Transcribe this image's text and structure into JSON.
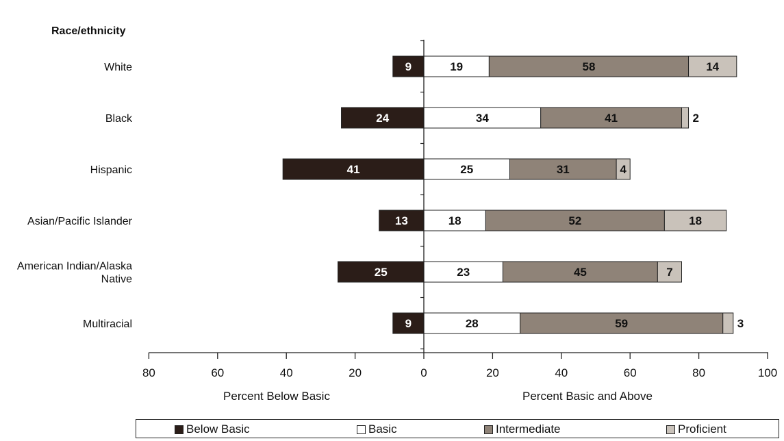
{
  "chart_data": {
    "type": "bar",
    "group_title": "Race/ethnicity",
    "categories": [
      "White",
      "Black",
      "Hispanic",
      "Asian/Pacific Islander",
      "American Indian/Alaska Native",
      "Multiracial"
    ],
    "category_lines": [
      [
        "White"
      ],
      [
        "Black"
      ],
      [
        "Hispanic"
      ],
      [
        "Asian/Pacific Islander"
      ],
      [
        "American Indian/Alaska",
        "Native"
      ],
      [
        "Multiracial"
      ]
    ],
    "series": [
      {
        "name": "Below Basic",
        "color": "#2b1d18",
        "text_color": "#ffffff",
        "values": [
          9,
          24,
          41,
          13,
          25,
          9
        ]
      },
      {
        "name": "Basic",
        "color": "#ffffff",
        "text_color": "#111111",
        "values": [
          19,
          34,
          25,
          18,
          23,
          28
        ]
      },
      {
        "name": "Intermediate",
        "color": "#8f8378",
        "text_color": "#111111",
        "values": [
          58,
          41,
          31,
          52,
          45,
          59
        ]
      },
      {
        "name": "Proficient",
        "color": "#c9c2ba",
        "text_color": "#111111",
        "values": [
          14,
          2,
          4,
          18,
          7,
          3
        ]
      }
    ],
    "xlabel_left": "Percent Below Basic",
    "xlabel_right": "Percent Basic and Above",
    "left_ticks": [
      "80",
      "60",
      "40",
      "20",
      "0"
    ],
    "right_ticks": [
      "20",
      "40",
      "60",
      "80",
      "100"
    ],
    "xlim": [
      -80,
      100
    ],
    "legend_position": "bottom"
  }
}
